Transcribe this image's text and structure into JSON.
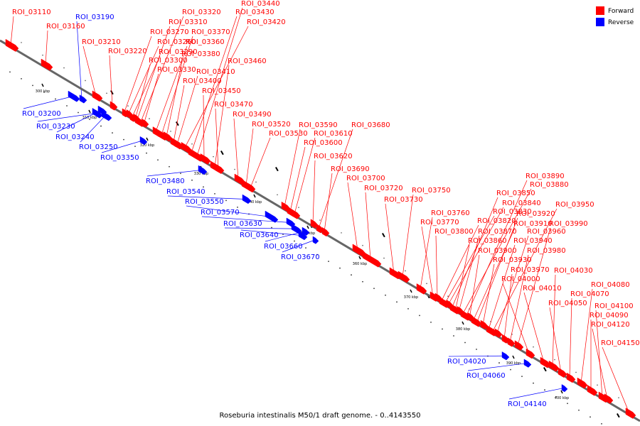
{
  "caption": "Roseburia intestinalis M50/1 draft genome. - 0..4143550",
  "legend": [
    {
      "label": "Forward",
      "color": "#ff0000"
    },
    {
      "label": "Reverse",
      "color": "#0000ff"
    }
  ],
  "colors": {
    "forward": "#ff0000",
    "reverse": "#0000ff",
    "backbone": "#666666"
  },
  "ticks": [
    "300 kbp",
    "310 kbp",
    "320 kbp",
    "330 kbp",
    "340 kbp",
    "350 kbp",
    "360 kbp",
    "370 kbp",
    "380 kbp",
    "390 kbp",
    "400 kbp"
  ],
  "features": [
    {
      "name": "ROI_03110",
      "strand": "forward"
    },
    {
      "name": "ROI_03160",
      "strand": "forward"
    },
    {
      "name": "ROI_03190",
      "strand": "reverse"
    },
    {
      "name": "ROI_03200",
      "strand": "reverse"
    },
    {
      "name": "ROI_03210",
      "strand": "forward"
    },
    {
      "name": "ROI_03220",
      "strand": "forward"
    },
    {
      "name": "ROI_03230",
      "strand": "reverse"
    },
    {
      "name": "ROI_03240",
      "strand": "reverse"
    },
    {
      "name": "ROI_03250",
      "strand": "reverse"
    },
    {
      "name": "ROI_03260",
      "strand": "forward"
    },
    {
      "name": "ROI_03270",
      "strand": "forward"
    },
    {
      "name": "ROI_03290",
      "strand": "forward"
    },
    {
      "name": "ROI_03300",
      "strand": "forward"
    },
    {
      "name": "ROI_03310",
      "strand": "forward"
    },
    {
      "name": "ROI_03320",
      "strand": "forward"
    },
    {
      "name": "ROI_03330",
      "strand": "forward"
    },
    {
      "name": "ROI_03350",
      "strand": "reverse"
    },
    {
      "name": "ROI_03360",
      "strand": "forward"
    },
    {
      "name": "ROI_03370",
      "strand": "forward"
    },
    {
      "name": "ROI_03380",
      "strand": "forward"
    },
    {
      "name": "ROI_03400",
      "strand": "forward"
    },
    {
      "name": "ROI_03410",
      "strand": "forward"
    },
    {
      "name": "ROI_03420",
      "strand": "forward"
    },
    {
      "name": "ROI_03430",
      "strand": "forward"
    },
    {
      "name": "ROI_03440",
      "strand": "forward"
    },
    {
      "name": "ROI_03450",
      "strand": "forward"
    },
    {
      "name": "ROI_03460",
      "strand": "forward"
    },
    {
      "name": "ROI_03470",
      "strand": "forward"
    },
    {
      "name": "ROI_03480",
      "strand": "reverse"
    },
    {
      "name": "ROI_03490",
      "strand": "forward"
    },
    {
      "name": "ROI_03520",
      "strand": "forward"
    },
    {
      "name": "ROI_03530",
      "strand": "forward"
    },
    {
      "name": "ROI_03540",
      "strand": "reverse"
    },
    {
      "name": "ROI_03550",
      "strand": "reverse"
    },
    {
      "name": "ROI_03570",
      "strand": "reverse"
    },
    {
      "name": "ROI_03590",
      "strand": "forward"
    },
    {
      "name": "ROI_03600",
      "strand": "forward"
    },
    {
      "name": "ROI_03610",
      "strand": "forward"
    },
    {
      "name": "ROI_03620",
      "strand": "forward"
    },
    {
      "name": "ROI_03630",
      "strand": "reverse"
    },
    {
      "name": "ROI_03640",
      "strand": "reverse"
    },
    {
      "name": "ROI_03660",
      "strand": "reverse"
    },
    {
      "name": "ROI_03670",
      "strand": "reverse"
    },
    {
      "name": "ROI_03680",
      "strand": "forward"
    },
    {
      "name": "ROI_03690",
      "strand": "forward"
    },
    {
      "name": "ROI_03700",
      "strand": "forward"
    },
    {
      "name": "ROI_03720",
      "strand": "forward"
    },
    {
      "name": "ROI_03730",
      "strand": "forward"
    },
    {
      "name": "ROI_03750",
      "strand": "forward"
    },
    {
      "name": "ROI_03760",
      "strand": "forward"
    },
    {
      "name": "ROI_03770",
      "strand": "forward"
    },
    {
      "name": "ROI_03800",
      "strand": "forward"
    },
    {
      "name": "ROI_03820",
      "strand": "forward"
    },
    {
      "name": "ROI_03830",
      "strand": "forward"
    },
    {
      "name": "ROI_03840",
      "strand": "forward"
    },
    {
      "name": "ROI_03850",
      "strand": "forward"
    },
    {
      "name": "ROI_03860",
      "strand": "forward"
    },
    {
      "name": "ROI_03870",
      "strand": "forward"
    },
    {
      "name": "ROI_03880",
      "strand": "forward"
    },
    {
      "name": "ROI_03890",
      "strand": "forward"
    },
    {
      "name": "ROI_03900",
      "strand": "forward"
    },
    {
      "name": "ROI_03910",
      "strand": "forward"
    },
    {
      "name": "ROI_03920",
      "strand": "forward"
    },
    {
      "name": "ROI_03930",
      "strand": "forward"
    },
    {
      "name": "ROI_03940",
      "strand": "forward"
    },
    {
      "name": "ROI_03950",
      "strand": "forward"
    },
    {
      "name": "ROI_03960",
      "strand": "forward"
    },
    {
      "name": "ROI_03970",
      "strand": "forward"
    },
    {
      "name": "ROI_03980",
      "strand": "forward"
    },
    {
      "name": "ROI_03990",
      "strand": "forward"
    },
    {
      "name": "ROI_04000",
      "strand": "forward"
    },
    {
      "name": "ROI_04010",
      "strand": "forward"
    },
    {
      "name": "ROI_04020",
      "strand": "reverse"
    },
    {
      "name": "ROI_04030",
      "strand": "forward"
    },
    {
      "name": "ROI_04050",
      "strand": "forward"
    },
    {
      "name": "ROI_04060",
      "strand": "reverse"
    },
    {
      "name": "ROI_04070",
      "strand": "forward"
    },
    {
      "name": "ROI_04080",
      "strand": "forward"
    },
    {
      "name": "ROI_04090",
      "strand": "forward"
    },
    {
      "name": "ROI_04100",
      "strand": "forward"
    },
    {
      "name": "ROI_04120",
      "strand": "forward"
    },
    {
      "name": "ROI_04140",
      "strand": "reverse"
    },
    {
      "name": "ROI_04150",
      "strand": "forward"
    }
  ]
}
